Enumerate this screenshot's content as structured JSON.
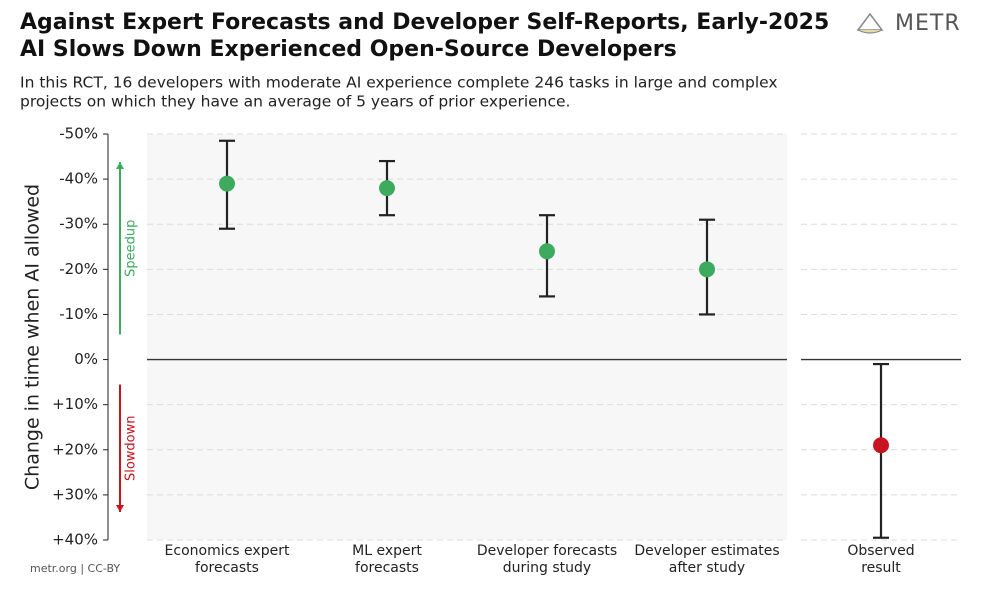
{
  "logo": "METR",
  "footer": "metr.org  |  CC-BY",
  "chart_data": {
    "type": "errorbar",
    "title": [
      "Against Expert Forecasts and Developer Self-Reports, Early-2025",
      "AI Slows Down Experienced Open-Source Developers"
    ],
    "subtitle": [
      "In this RCT, 16 developers with moderate AI experience complete 246 tasks in large and complex",
      "projects on which they have an average of 5 years of prior experience."
    ],
    "y_label": "Change in time when AI allowed",
    "annotations": [
      {
        "text": "Speedup",
        "color": "#3daa5e"
      },
      {
        "text": "Slowdown",
        "color": "#c8141e"
      }
    ],
    "categories": [
      [
        "Economics expert",
        "forecasts"
      ],
      [
        "ML expert",
        "forecasts"
      ],
      [
        "Developer forecasts",
        "during study"
      ],
      [
        "Developer estimates",
        "after study"
      ],
      [
        "Observed",
        "result"
      ]
    ],
    "values": [
      -39,
      -38,
      -24,
      -20,
      19
    ],
    "ci_low": [
      -48.5,
      -44,
      -32,
      -31,
      1
    ],
    "ci_high": [
      -29,
      -32,
      -14,
      -10,
      39.5
    ],
    "colors": [
      "#3daa5e",
      "#3daa5e",
      "#3daa5e",
      "#3daa5e",
      "#c8141e"
    ],
    "ylim": [
      -50,
      40
    ],
    "y_inverted": true,
    "yticks": [
      {
        "value": -50,
        "label": "-50%"
      },
      {
        "value": -40,
        "label": "-40%"
      },
      {
        "value": -30,
        "label": "-30%"
      },
      {
        "value": -20,
        "label": "-20%"
      },
      {
        "value": -10,
        "label": "-10%"
      },
      {
        "value": 0,
        "label": "0%"
      },
      {
        "value": 10,
        "label": "+10%"
      },
      {
        "value": 20,
        "label": "+20%"
      },
      {
        "value": 30,
        "label": "+30%"
      },
      {
        "value": 40,
        "label": "+40%"
      }
    ],
    "grid": true
  }
}
